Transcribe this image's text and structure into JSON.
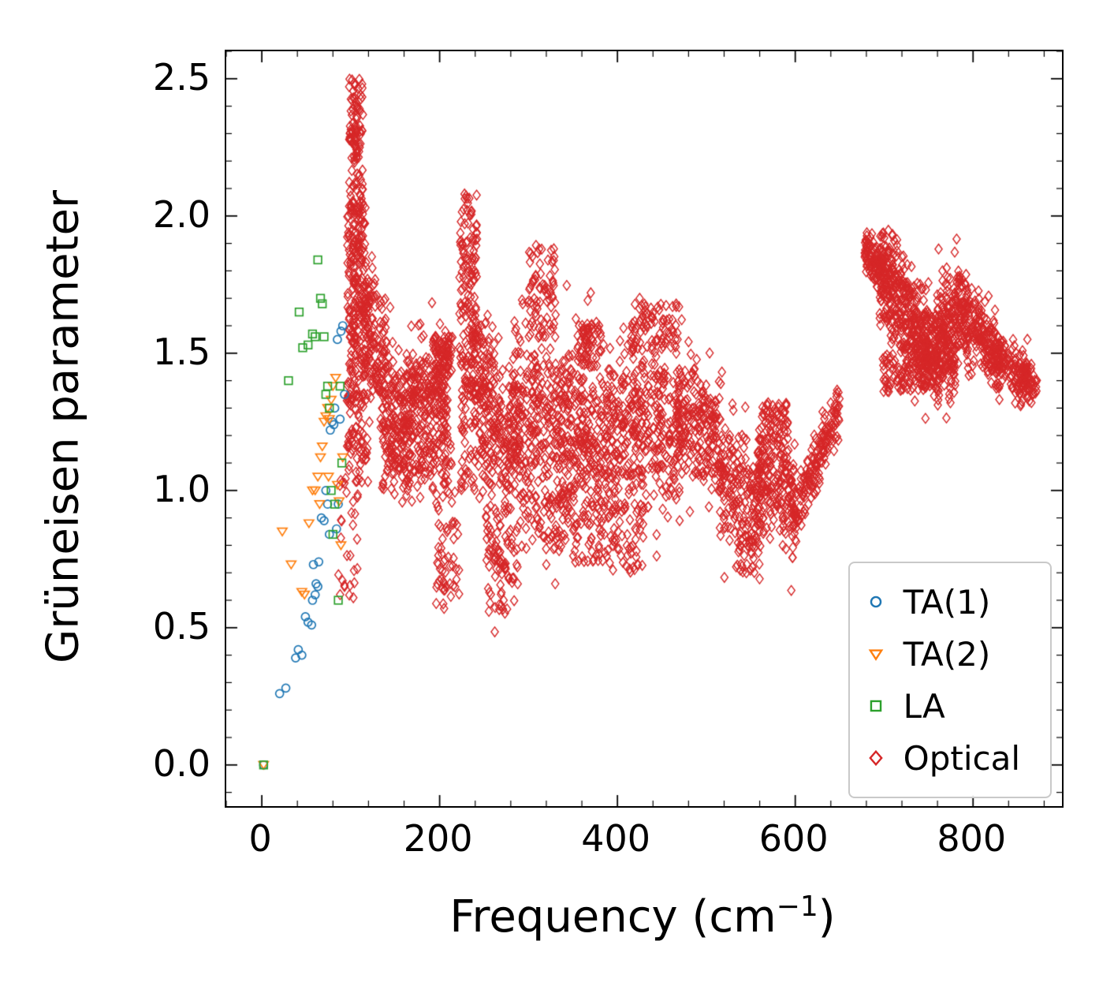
{
  "figure": {
    "ylabel": "Grüneisen parameter",
    "xlabel_pre": "Frequency (cm",
    "xlabel_sup": "−1",
    "xlabel_post": ")",
    "background": "#ffffff"
  },
  "chart_data": {
    "type": "scatter",
    "title": "",
    "xlabel": "Frequency (cm⁻¹)",
    "ylabel": "Grüneisen parameter",
    "xlim": [
      -40,
      900
    ],
    "ylim": [
      -0.15,
      2.6
    ],
    "x_ticks": [
      0,
      200,
      400,
      600,
      800
    ],
    "x_tick_labels": [
      "0",
      "200",
      "400",
      "600",
      "800"
    ],
    "y_ticks": [
      0.0,
      0.5,
      1.0,
      1.5,
      2.0,
      2.5
    ],
    "y_tick_labels": [
      "0.0",
      "0.5",
      "1.0",
      "1.5",
      "2.0",
      "2.5"
    ],
    "x_minor_step": 40,
    "y_minor_step": 0.1,
    "grid": false,
    "legend_position": "lower right",
    "series": [
      {
        "name": "TA(1)",
        "marker": "circle",
        "color": "#1f77b4",
        "points": [
          [
            2,
            0.0
          ],
          [
            20,
            0.26
          ],
          [
            27,
            0.28
          ],
          [
            38,
            0.39
          ],
          [
            41,
            0.42
          ],
          [
            45,
            0.4
          ],
          [
            49,
            0.54
          ],
          [
            52,
            0.52
          ],
          [
            56,
            0.51
          ],
          [
            57,
            0.6
          ],
          [
            60,
            0.62
          ],
          [
            61,
            0.66
          ],
          [
            63,
            0.65
          ],
          [
            58,
            0.73
          ],
          [
            64,
            0.74
          ],
          [
            67,
            0.9
          ],
          [
            70,
            0.89
          ],
          [
            72,
            1.0
          ],
          [
            74,
            0.95
          ],
          [
            76,
            0.84
          ],
          [
            77,
            1.22
          ],
          [
            79,
            1.25
          ],
          [
            81,
            1.24
          ],
          [
            82,
            1.3
          ],
          [
            84,
            0.86
          ],
          [
            86,
            0.95
          ],
          [
            88,
            1.26
          ],
          [
            85,
            1.55
          ],
          [
            89,
            1.58
          ],
          [
            91,
            1.6
          ],
          [
            93,
            1.35
          ]
        ]
      },
      {
        "name": "TA(2)",
        "marker": "triangle-down",
        "color": "#ff7f0e",
        "points": [
          [
            2,
            0.0
          ],
          [
            23,
            0.85
          ],
          [
            33,
            0.73
          ],
          [
            45,
            0.63
          ],
          [
            48,
            0.62
          ],
          [
            53,
            0.88
          ],
          [
            57,
            1.0
          ],
          [
            60,
            1.0
          ],
          [
            63,
            1.05
          ],
          [
            65,
            0.95
          ],
          [
            66,
            1.12
          ],
          [
            68,
            1.16
          ],
          [
            70,
            1.25
          ],
          [
            72,
            1.27
          ],
          [
            74,
            1.3
          ],
          [
            75,
            1.05
          ],
          [
            76,
            1.26
          ],
          [
            78,
            1.33
          ],
          [
            80,
            1.38
          ],
          [
            83,
            1.41
          ],
          [
            85,
            1.02
          ],
          [
            87,
            0.96
          ],
          [
            89,
            0.8
          ],
          [
            91,
            1.12
          ]
        ]
      },
      {
        "name": "LA",
        "marker": "square",
        "color": "#2ca02c",
        "points": [
          [
            2,
            0.0
          ],
          [
            30,
            1.4
          ],
          [
            42,
            1.65
          ],
          [
            46,
            1.52
          ],
          [
            52,
            1.53
          ],
          [
            57,
            1.57
          ],
          [
            60,
            1.56
          ],
          [
            63,
            1.84
          ],
          [
            66,
            1.7
          ],
          [
            68,
            1.68
          ],
          [
            70,
            1.56
          ],
          [
            72,
            1.35
          ],
          [
            74,
            1.38
          ],
          [
            76,
            1.3
          ],
          [
            78,
            1.0
          ],
          [
            80,
            0.84
          ],
          [
            82,
            0.95
          ],
          [
            86,
            0.6
          ],
          [
            88,
            1.38
          ],
          [
            90,
            1.1
          ]
        ]
      },
      {
        "name": "Optical",
        "marker": "diamond",
        "color": "#d62728",
        "points": [
          [
            105,
            2.48
          ],
          [
            103,
            2.43
          ],
          [
            107,
            2.4
          ],
          [
            228,
            2.08
          ],
          [
            231,
            2.02
          ],
          [
            312,
            1.88
          ],
          [
            308,
            1.78
          ],
          [
            316,
            1.75
          ],
          [
            370,
            1.72
          ],
          [
            425,
            1.7
          ],
          [
            462,
            1.67
          ],
          [
            205,
            0.57
          ],
          [
            262,
            0.485
          ],
          [
            272,
            0.6
          ],
          [
            320,
            0.73
          ],
          [
            330,
            0.66
          ],
          [
            352,
            0.78
          ],
          [
            395,
            0.71
          ],
          [
            418,
            0.72
          ],
          [
            545,
            0.7
          ],
          [
            552,
            0.72
          ],
          [
            600,
            0.82
          ],
          [
            700,
            1.92
          ],
          [
            845,
            1.55
          ],
          [
            862,
            1.37
          ]
        ],
        "dense_regions": {
          "note": "approximate shape of the dense optical-branch cloud; bands = [x0,x1,yStart,yEnd,gaussSpread,count], strips = [x0,x1,yLow,yHigh,count]",
          "bands": [
            [
              115,
              140,
              1.62,
              1.45,
              0.12,
              130
            ],
            [
              135,
              170,
              1.27,
              1.25,
              0.13,
              200
            ],
            [
              165,
              210,
              1.37,
              1.33,
              0.11,
              200
            ],
            [
              140,
              215,
              1.08,
              1.12,
              0.06,
              90
            ],
            [
              235,
              262,
              1.52,
              1.38,
              0.12,
              90
            ],
            [
              240,
              285,
              1.25,
              1.15,
              0.13,
              180
            ],
            [
              282,
              348,
              1.29,
              1.24,
              0.17,
              330
            ],
            [
              345,
              400,
              1.2,
              1.17,
              0.16,
              270
            ],
            [
              400,
              470,
              1.26,
              1.22,
              0.16,
              310
            ],
            [
              468,
              518,
              1.27,
              1.17,
              0.11,
              210
            ],
            [
              515,
              565,
              1.02,
              0.95,
              0.11,
              190
            ],
            [
              558,
              600,
              1.07,
              1.0,
              0.11,
              170
            ],
            [
              596,
              650,
              0.88,
              1.3,
              0.055,
              180
            ],
            [
              678,
              700,
              1.88,
              1.79,
              0.04,
              120
            ],
            [
              695,
              750,
              1.77,
              1.52,
              0.1,
              380
            ],
            [
              745,
              780,
              1.53,
              1.46,
              0.07,
              160
            ],
            [
              755,
              795,
              1.58,
              1.66,
              0.09,
              180
            ],
            [
              790,
              830,
              1.63,
              1.49,
              0.07,
              170
            ],
            [
              820,
              862,
              1.5,
              1.39,
              0.055,
              150
            ],
            [
              855,
              872,
              1.42,
              1.37,
              0.035,
              50
            ]
          ],
          "strips": [
            [
              86,
              112,
              0.6,
              1.05,
              30
            ],
            [
              96,
              118,
              1.3,
              2.05,
              240
            ],
            [
              98,
              114,
              2.0,
              2.5,
              110
            ],
            [
              95,
              120,
              1.02,
              1.35,
              60
            ],
            [
              192,
              215,
              1.42,
              1.56,
              80
            ],
            [
              196,
              222,
              0.58,
              1.0,
              55
            ],
            [
              222,
              242,
              1.45,
              2.08,
              110
            ],
            [
              224,
              240,
              1.0,
              1.5,
              70
            ],
            [
              300,
              330,
              1.55,
              1.9,
              60
            ],
            [
              290,
              345,
              0.78,
              1.0,
              70
            ],
            [
              252,
              288,
              0.55,
              0.95,
              90
            ],
            [
              355,
              385,
              1.45,
              1.62,
              60
            ],
            [
              348,
              400,
              0.72,
              0.95,
              50
            ],
            [
              415,
              470,
              1.5,
              1.68,
              80
            ],
            [
              398,
              430,
              0.7,
              0.95,
              40
            ],
            [
              532,
              560,
              0.7,
              0.85,
              35
            ],
            [
              565,
              592,
              1.18,
              1.32,
              50
            ],
            [
              698,
              765,
              1.36,
              1.5,
              120
            ]
          ]
        }
      }
    ]
  }
}
